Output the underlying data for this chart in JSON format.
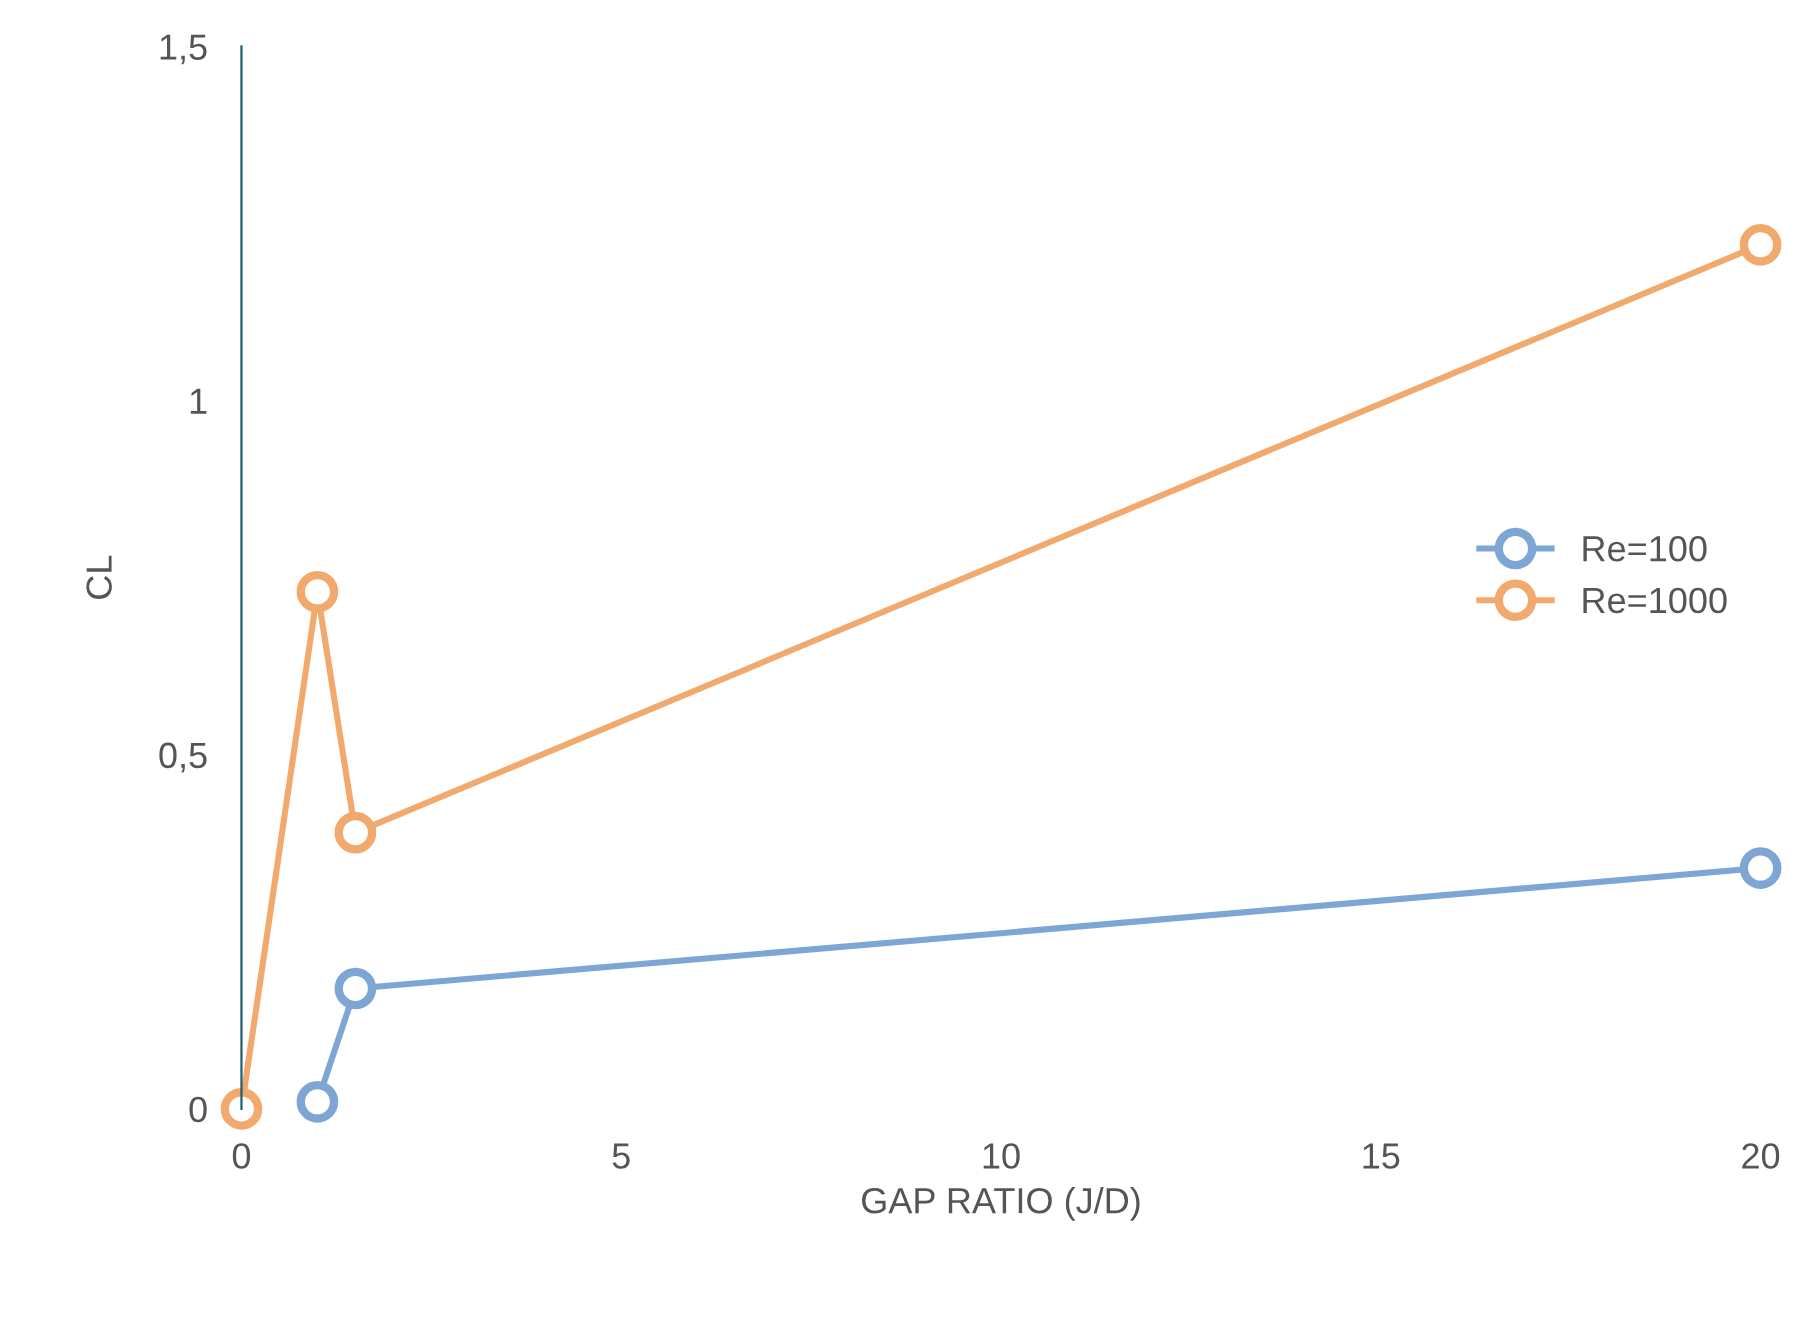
{
  "chart_data": {
    "type": "line",
    "xlabel": "GAP RATIO (J/D)",
    "ylabel": "CL",
    "xlim": [
      0,
      20
    ],
    "xticks": [
      0,
      5,
      10,
      15,
      20
    ],
    "ylim": [
      0,
      1.5
    ],
    "yticks": [
      {
        "value": 0,
        "label": "0"
      },
      {
        "value": 0.5,
        "label": "0,5"
      },
      {
        "value": 1,
        "label": "1"
      },
      {
        "value": 1.5,
        "label": "1,5"
      }
    ],
    "grid": false,
    "legend": "right",
    "marker": "circle",
    "line_style": "solid",
    "series": [
      {
        "name": "Re=100",
        "color": "#7ea6d4",
        "x": [
          1,
          1.5,
          20
        ],
        "values": [
          0.01,
          0.17,
          0.34
        ]
      },
      {
        "name": "Re=1000",
        "color": "#f2a96e",
        "x": [
          0,
          1,
          1.5,
          20
        ],
        "values": [
          0,
          0.73,
          0.39,
          1.22
        ]
      }
    ]
  }
}
